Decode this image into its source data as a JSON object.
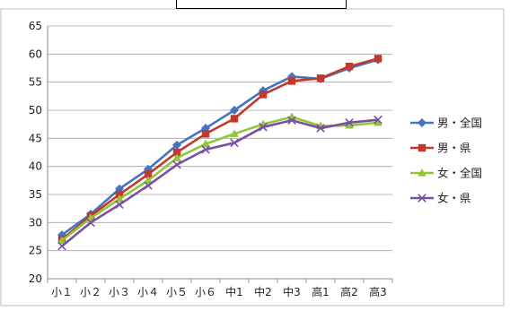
{
  "chart_data": {
    "type": "line",
    "title": "",
    "xlabel": "",
    "ylabel": "",
    "categories": [
      "小１",
      "小２",
      "小３",
      "小４",
      "小５",
      "小６",
      "中1",
      "中2",
      "中3",
      "高1",
      "高2",
      "高3"
    ],
    "ylim": [
      20,
      65
    ],
    "yticks": [
      20,
      25,
      30,
      35,
      40,
      45,
      50,
      55,
      60,
      65
    ],
    "grid": true,
    "legend_position": "right",
    "series": [
      {
        "name": "男・全国",
        "color": "#4472C4",
        "marker": "diamond",
        "values": [
          27.8,
          31.5,
          36.0,
          39.5,
          43.8,
          46.8,
          50.0,
          53.5,
          56.0,
          55.6,
          57.5,
          59.0
        ]
      },
      {
        "name": "男・県",
        "color": "#C0392B",
        "marker": "square",
        "values": [
          27.0,
          31.2,
          35.0,
          38.6,
          42.5,
          45.8,
          48.5,
          52.8,
          55.2,
          55.7,
          57.8,
          59.2
        ]
      },
      {
        "name": "女・全国",
        "color": "#92C53A",
        "marker": "triangle",
        "values": [
          26.8,
          30.8,
          34.2,
          37.5,
          41.5,
          44.0,
          45.8,
          47.5,
          48.8,
          47.2,
          47.3,
          47.8
        ]
      },
      {
        "name": "女・県",
        "color": "#7B4FA0",
        "marker": "x",
        "values": [
          25.8,
          30.0,
          33.2,
          36.6,
          40.3,
          43.0,
          44.2,
          47.0,
          48.2,
          46.8,
          47.8,
          48.3
        ]
      }
    ]
  }
}
